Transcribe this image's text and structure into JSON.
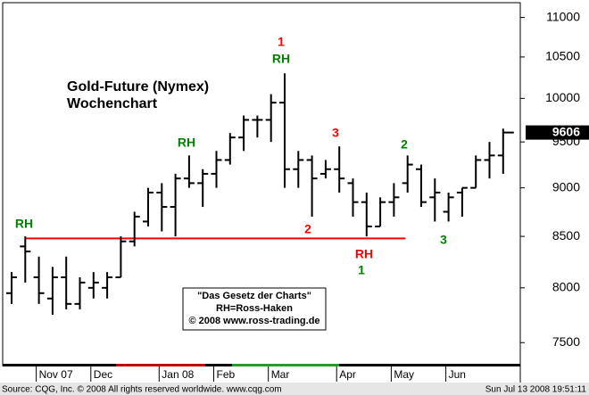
{
  "chart_data": {
    "type": "ohlc",
    "title": "Gold-Future (Nymex)",
    "subtitle": "Wochenchart",
    "categories": [
      null,
      null,
      "Nov 07",
      null,
      null,
      null,
      "Dec",
      null,
      null,
      null,
      null,
      "Jan 08",
      null,
      null,
      null,
      "Feb",
      null,
      null,
      null,
      "Mar",
      null,
      null,
      null,
      null,
      "Apr",
      null,
      null,
      null,
      "May",
      null,
      null,
      null,
      "Jun",
      null,
      null,
      null,
      null
    ],
    "series": [
      {
        "color": "#000000",
        "open": [
          7950,
          8400,
          8100,
          7900,
          8100,
          7850,
          8000,
          8000,
          8100,
          8450,
          8650,
          8950,
          8800,
          9100,
          9050,
          9150,
          9300,
          9550,
          9750,
          9750,
          9950,
          9200,
          9300,
          9150,
          9200,
          9050,
          8850,
          8600,
          8850,
          9050,
          9200,
          8900,
          8750,
          8950,
          9000,
          9300,
          9350
        ],
        "high": [
          8150,
          8500,
          8300,
          8200,
          8300,
          8100,
          8150,
          8150,
          8500,
          8750,
          9000,
          9050,
          9150,
          9350,
          9200,
          9400,
          9600,
          9800,
          9800,
          10050,
          10300,
          9400,
          9350,
          9300,
          9450,
          9100,
          8950,
          8900,
          9050,
          9350,
          9250,
          9100,
          8950,
          9000,
          9350,
          9500,
          9650
        ],
        "low": [
          7850,
          8050,
          7850,
          7750,
          7800,
          7800,
          7900,
          7900,
          8100,
          8400,
          8600,
          8550,
          8500,
          9000,
          8800,
          9000,
          9250,
          9400,
          9550,
          9500,
          9000,
          9000,
          8700,
          9100,
          8950,
          8700,
          8500,
          8600,
          8700,
          8950,
          8800,
          8650,
          8650,
          8700,
          9000,
          9100,
          9150
        ],
        "close": [
          8100,
          8350,
          7950,
          8100,
          7850,
          8050,
          8050,
          8100,
          8450,
          8700,
          8950,
          8800,
          9100,
          9050,
          9150,
          9300,
          9550,
          9750,
          9750,
          9950,
          9200,
          9300,
          9100,
          9200,
          9100,
          8850,
          8600,
          8850,
          8900,
          9250,
          8850,
          8950,
          8900,
          9000,
          9300,
          9350,
          9606
        ]
      }
    ],
    "support_line": {
      "value": 8480,
      "color": "#ff0000"
    },
    "ylim": [
      7300,
      11170
    ],
    "yticks": [
      7500,
      8000,
      8500,
      9000,
      9500,
      10000,
      10500,
      11000
    ],
    "log_y": true,
    "grid": false,
    "annotations": [
      {
        "text": "RH",
        "color": "#008000"
      },
      {
        "text": "RH",
        "color": "#008000"
      },
      {
        "text": "1",
        "color": "#ff0000"
      },
      {
        "text": "RH",
        "color": "#008000"
      },
      {
        "text": "3",
        "color": "#ff0000"
      },
      {
        "text": "2",
        "color": "#008000"
      },
      {
        "text": "2",
        "color": "#ff0000"
      },
      {
        "text": "RH",
        "color": "#ff0000"
      },
      {
        "text": "1",
        "color": "#008000"
      },
      {
        "text": "3",
        "color": "#008000"
      }
    ],
    "info_box": [
      "\"Das Gesetz der Charts\"",
      "RH=Ross-Haken",
      "© 2008 www.ross-trading.de"
    ],
    "footer_left": "Source: CQG, Inc. © 2008 All rights reserved worldwide. www.cqg.com",
    "footer_right": "Sun Jul 13 2008 19:51:11"
  }
}
